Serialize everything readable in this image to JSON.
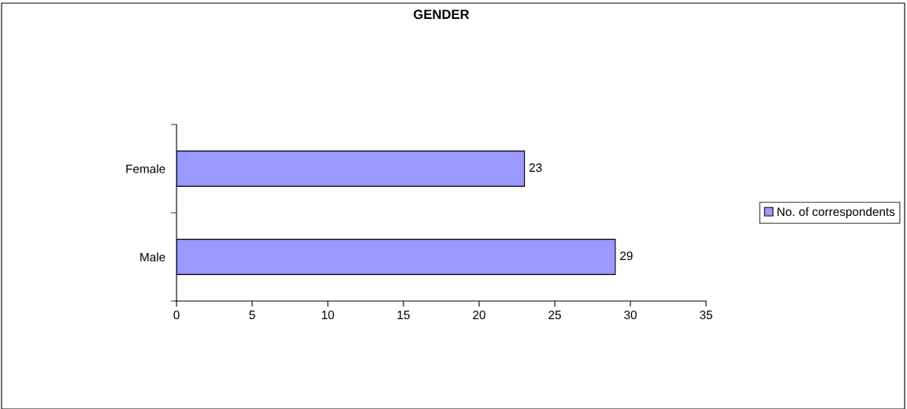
{
  "chart_data": {
    "type": "bar",
    "title": "GENDER",
    "orientation": "horizontal",
    "categories": [
      "Female",
      "Male"
    ],
    "series": [
      {
        "name": "No. of correspondents",
        "color": "#9999ff",
        "values": [
          23,
          29
        ]
      }
    ],
    "xlim": [
      0,
      35
    ],
    "xticks": [
      0,
      5,
      10,
      15,
      20,
      25,
      30,
      35
    ],
    "data_labels": true,
    "grid": false,
    "legend": "right"
  }
}
